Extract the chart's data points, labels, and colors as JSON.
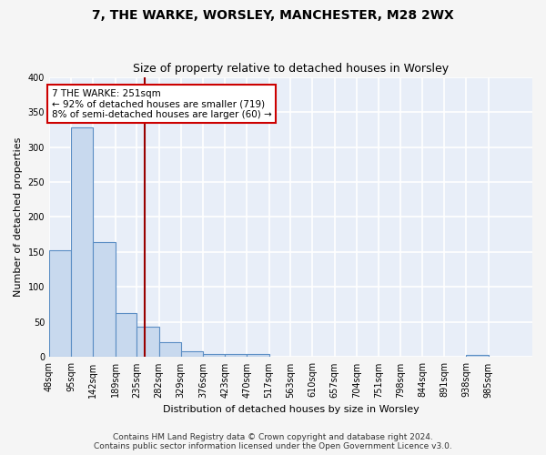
{
  "title": "7, THE WARKE, WORSLEY, MANCHESTER, M28 2WX",
  "subtitle": "Size of property relative to detached houses in Worsley",
  "xlabel": "Distribution of detached houses by size in Worsley",
  "ylabel": "Number of detached properties",
  "bar_color": "#c8d9ee",
  "bar_edge_color": "#5b8ec4",
  "background_color": "#e8eef8",
  "fig_background_color": "#f5f5f5",
  "grid_color": "#ffffff",
  "bin_labels": [
    "48sqm",
    "95sqm",
    "142sqm",
    "189sqm",
    "235sqm",
    "282sqm",
    "329sqm",
    "376sqm",
    "423sqm",
    "470sqm",
    "517sqm",
    "563sqm",
    "610sqm",
    "657sqm",
    "704sqm",
    "751sqm",
    "798sqm",
    "844sqm",
    "891sqm",
    "938sqm",
    "985sqm"
  ],
  "bar_heights": [
    152,
    328,
    164,
    63,
    44,
    21,
    9,
    4,
    4,
    5,
    0,
    0,
    0,
    0,
    0,
    0,
    0,
    0,
    0,
    3,
    0
  ],
  "bin_edges": [
    48,
    95,
    142,
    189,
    235,
    282,
    329,
    376,
    423,
    470,
    517,
    563,
    610,
    657,
    704,
    751,
    798,
    844,
    891,
    938,
    985,
    1032
  ],
  "vline_x": 251,
  "vline_color": "#990000",
  "annotation_text": "7 THE WARKE: 251sqm\n← 92% of detached houses are smaller (719)\n8% of semi-detached houses are larger (60) →",
  "annotation_box_color": "#ffffff",
  "annotation_box_edge_color": "#cc0000",
  "ylim": [
    0,
    400
  ],
  "yticks": [
    0,
    50,
    100,
    150,
    200,
    250,
    300,
    350,
    400
  ],
  "footer_text": "Contains HM Land Registry data © Crown copyright and database right 2024.\nContains public sector information licensed under the Open Government Licence v3.0.",
  "title_fontsize": 10,
  "subtitle_fontsize": 9,
  "label_fontsize": 8,
  "tick_fontsize": 7,
  "footer_fontsize": 6.5,
  "annotation_fontsize": 7.5
}
